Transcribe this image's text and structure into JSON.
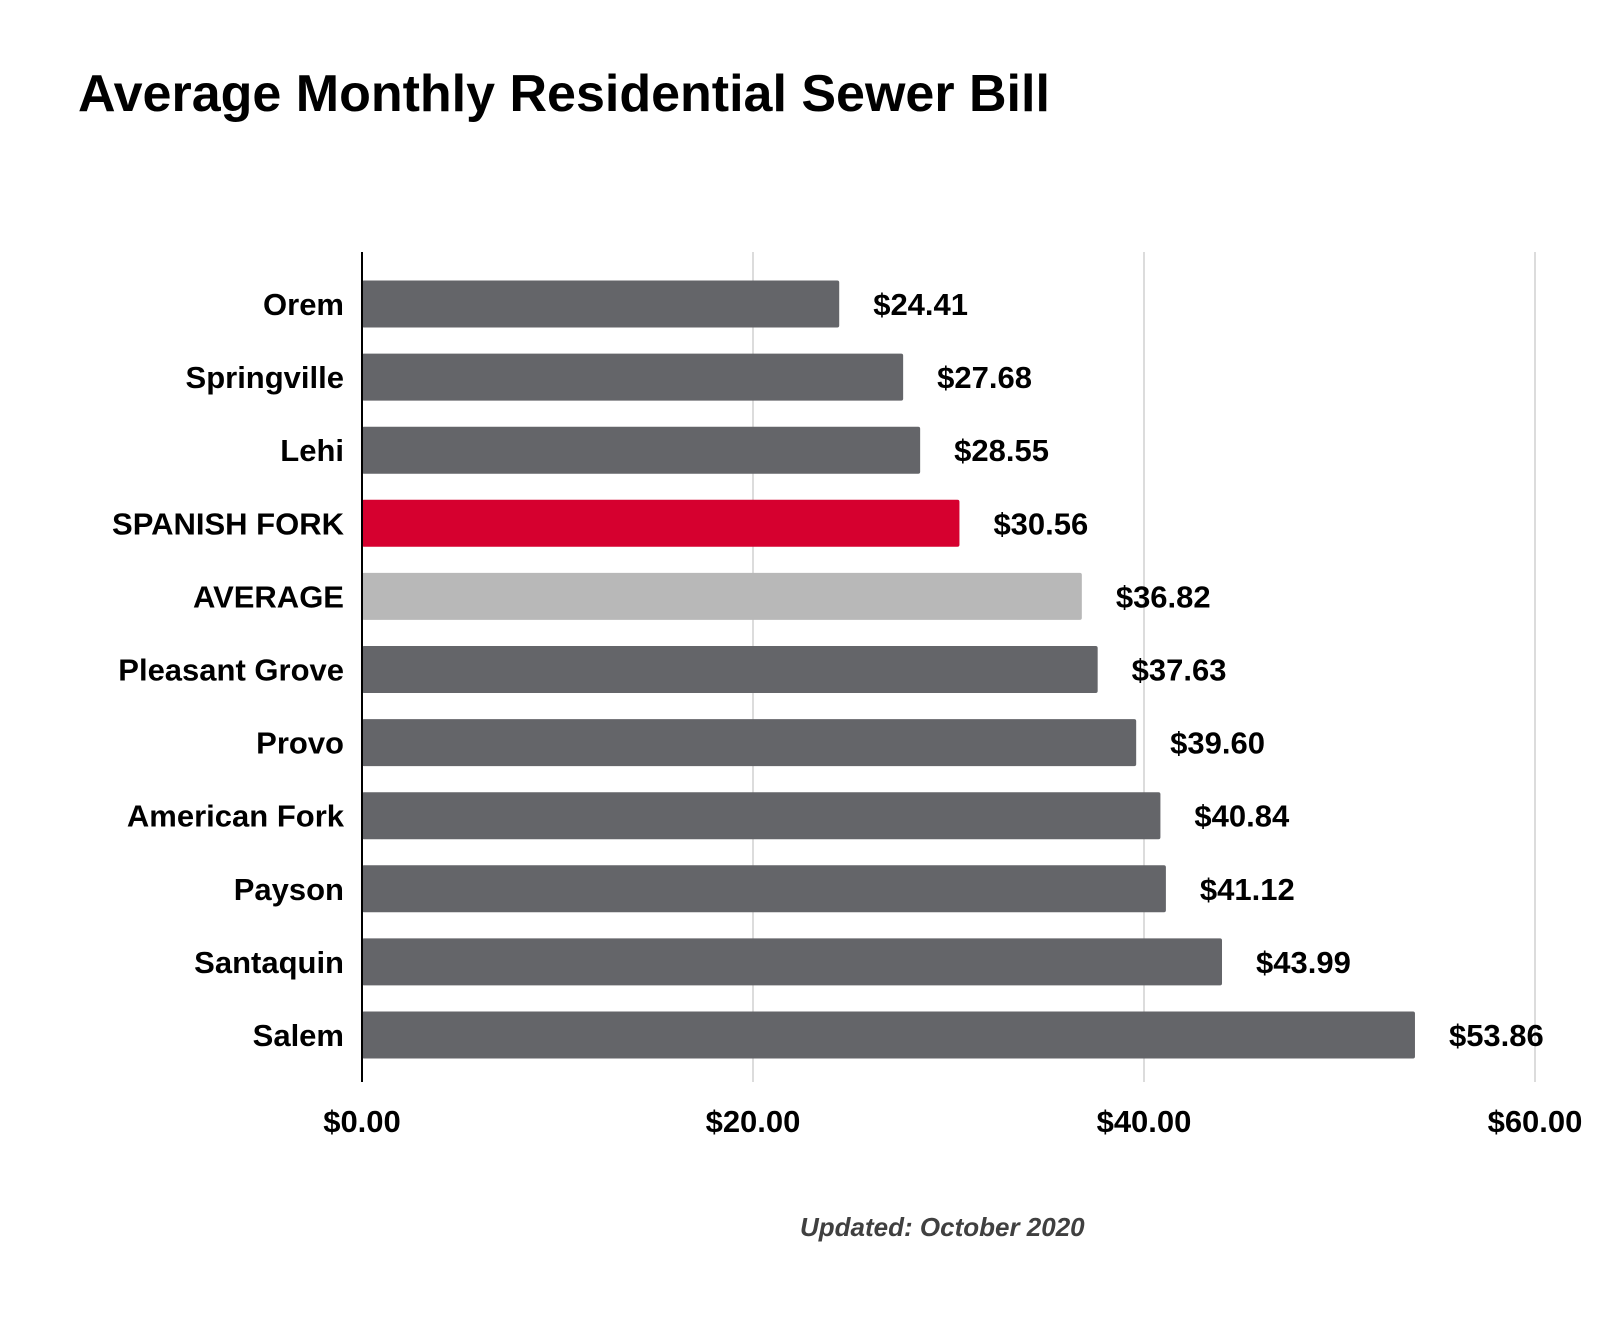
{
  "chart_data": {
    "type": "bar",
    "orientation": "horizontal",
    "title": "Average Monthly Residential Sewer Bill",
    "footnote": "Updated: October 2020",
    "xlabel": "",
    "ylabel": "",
    "xlim": [
      0,
      60
    ],
    "ticks": [
      0,
      20,
      40,
      60
    ],
    "tick_labels": [
      "$0.00",
      "$20.00",
      "$40.00",
      "$60.00"
    ],
    "grid": "vertical",
    "colors": {
      "default": "#646569",
      "highlight": "#d6002f",
      "average": "#b8b8b8",
      "grid": "#d0d0d0",
      "axis": "#000000"
    },
    "categories": [
      "Orem",
      "Springville",
      "Lehi",
      "SPANISH FORK",
      "AVERAGE",
      "Pleasant Grove",
      "Provo",
      "American Fork",
      "Payson",
      "Santaquin",
      "Salem"
    ],
    "values": [
      24.41,
      27.68,
      28.55,
      30.56,
      36.82,
      37.63,
      39.6,
      40.84,
      41.12,
      43.99,
      53.86
    ],
    "value_labels": [
      "$24.41",
      "$27.68",
      "$28.55",
      "$30.56",
      "$36.82",
      "$37.63",
      "$39.60",
      "$40.84",
      "$41.12",
      "$43.99",
      "$53.86"
    ],
    "bar_styles": [
      "default",
      "default",
      "default",
      "highlight",
      "average",
      "default",
      "default",
      "default",
      "default",
      "default",
      "default"
    ]
  }
}
